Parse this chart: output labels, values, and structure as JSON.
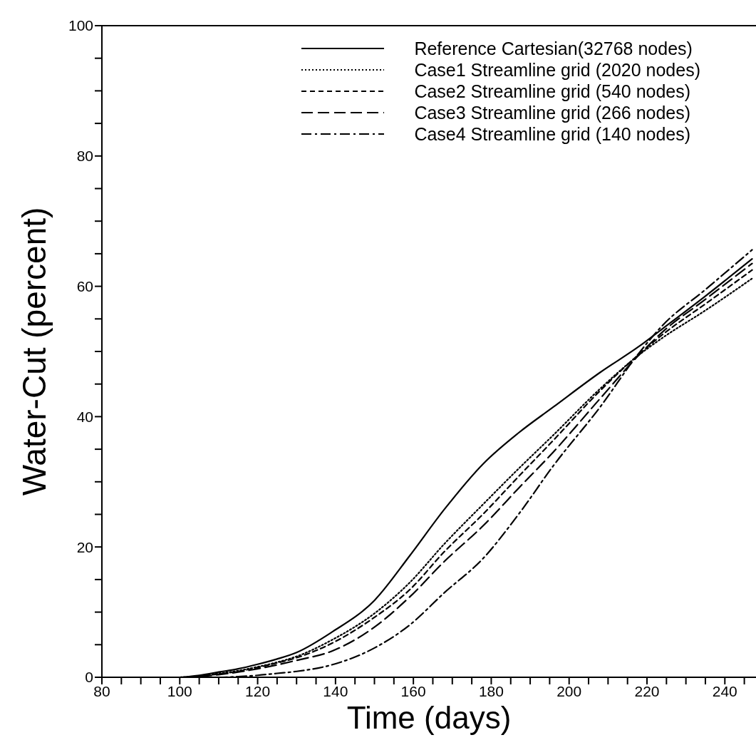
{
  "chart_data": {
    "type": "line",
    "xlabel": "Time (days)",
    "ylabel": "Water-Cut (percent)",
    "x": [
      80,
      100,
      105,
      110,
      115,
      120,
      125,
      130,
      139,
      150,
      159,
      168,
      178,
      187,
      196,
      208,
      218,
      224,
      235,
      247
    ],
    "series": [
      {
        "name": "Reference Cartesian(32768 nodes)",
        "color": "#000000",
        "line_style": "solid",
        "values": [
          0,
          0,
          0.3,
          0.8,
          1.3,
          2,
          2.8,
          3.8,
          6.9,
          11.8,
          18.6,
          25.8,
          32.8,
          37.5,
          41.5,
          46.8,
          50.8,
          53.5,
          58.5,
          64.2
        ]
      },
      {
        "name": "Case1 Streamline grid (2020 nodes)",
        "color": "#000000",
        "line_style": "dotted",
        "values": [
          0,
          0,
          0.2,
          0.6,
          1,
          1.6,
          2.3,
          3.2,
          5.7,
          9.8,
          14.5,
          20.5,
          26.6,
          32,
          37.2,
          44.3,
          49.5,
          52.1,
          56.3,
          61.2
        ]
      },
      {
        "name": "Case2 Streamline grid (540 nodes)",
        "color": "#000000",
        "line_style": "dashed",
        "values": [
          0,
          0,
          0.2,
          0.5,
          0.9,
          1.5,
          2.2,
          3,
          5.2,
          9.2,
          13.4,
          19.3,
          25.1,
          30.8,
          36.4,
          44,
          49.6,
          52.6,
          57.3,
          62.5
        ]
      },
      {
        "name": "Case3 Streamline grid (266 nodes)",
        "color": "#000000",
        "line_style": "longdash",
        "values": [
          0,
          0,
          0.1,
          0.4,
          0.8,
          1.3,
          1.9,
          2.6,
          4,
          7.7,
          12.3,
          17.8,
          23.3,
          29,
          34.6,
          42.8,
          49.5,
          53,
          58,
          63.5
        ]
      },
      {
        "name": "Case4 Streamline grid (140 nodes)",
        "color": "#000000",
        "line_style": "dashdot",
        "values": [
          0,
          0,
          0,
          0,
          0.1,
          0.3,
          0.6,
          0.9,
          1.9,
          4.5,
          8,
          13,
          18.3,
          25,
          32.5,
          41.5,
          49.8,
          54,
          59.5,
          65.6
        ]
      }
    ],
    "xlim": [
      80,
      248
    ],
    "xticks": [
      80,
      {
        "value": 85,
        "label": null
      },
      {
        "value": 90,
        "label": null
      },
      {
        "value": 95,
        "label": null
      },
      100,
      {
        "value": 105,
        "label": null
      },
      {
        "value": 110,
        "label": null
      },
      {
        "value": 115,
        "label": null
      },
      120,
      {
        "value": 125,
        "label": null
      },
      {
        "value": 130,
        "label": null
      },
      {
        "value": 135,
        "label": null
      },
      140,
      {
        "value": 145,
        "label": null
      },
      {
        "value": 150,
        "label": null
      },
      {
        "value": 155,
        "label": null
      },
      160,
      {
        "value": 165,
        "label": null
      },
      {
        "value": 170,
        "label": null
      },
      {
        "value": 175,
        "label": null
      },
      180,
      {
        "value": 185,
        "label": null
      },
      {
        "value": 190,
        "label": null
      },
      {
        "value": 195,
        "label": null
      },
      200,
      {
        "value": 205,
        "label": null
      },
      {
        "value": 210,
        "label": null
      },
      {
        "value": 215,
        "label": null
      },
      220,
      {
        "value": 225,
        "label": null
      },
      {
        "value": 230,
        "label": null
      },
      {
        "value": 235,
        "label": null
      },
      240,
      {
        "value": 245,
        "label": null
      }
    ],
    "ylim": [
      0,
      100
    ],
    "yticks": [
      0,
      {
        "value": 5,
        "label": null
      },
      {
        "value": 10,
        "label": null
      },
      {
        "value": 15,
        "label": null
      },
      20,
      {
        "value": 25,
        "label": null
      },
      {
        "value": 30,
        "label": null
      },
      {
        "value": 35,
        "label": null
      },
      40,
      {
        "value": 45,
        "label": null
      },
      {
        "value": 50,
        "label": null
      },
      {
        "value": 55,
        "label": null
      },
      60,
      {
        "value": 65,
        "label": null
      },
      {
        "value": 70,
        "label": null
      },
      {
        "value": 75,
        "label": null
      },
      80,
      {
        "value": 85,
        "label": null
      },
      {
        "value": 90,
        "label": null
      },
      {
        "value": 95,
        "label": null
      },
      100
    ],
    "grid": false,
    "legend": "top right",
    "marker": "none"
  }
}
